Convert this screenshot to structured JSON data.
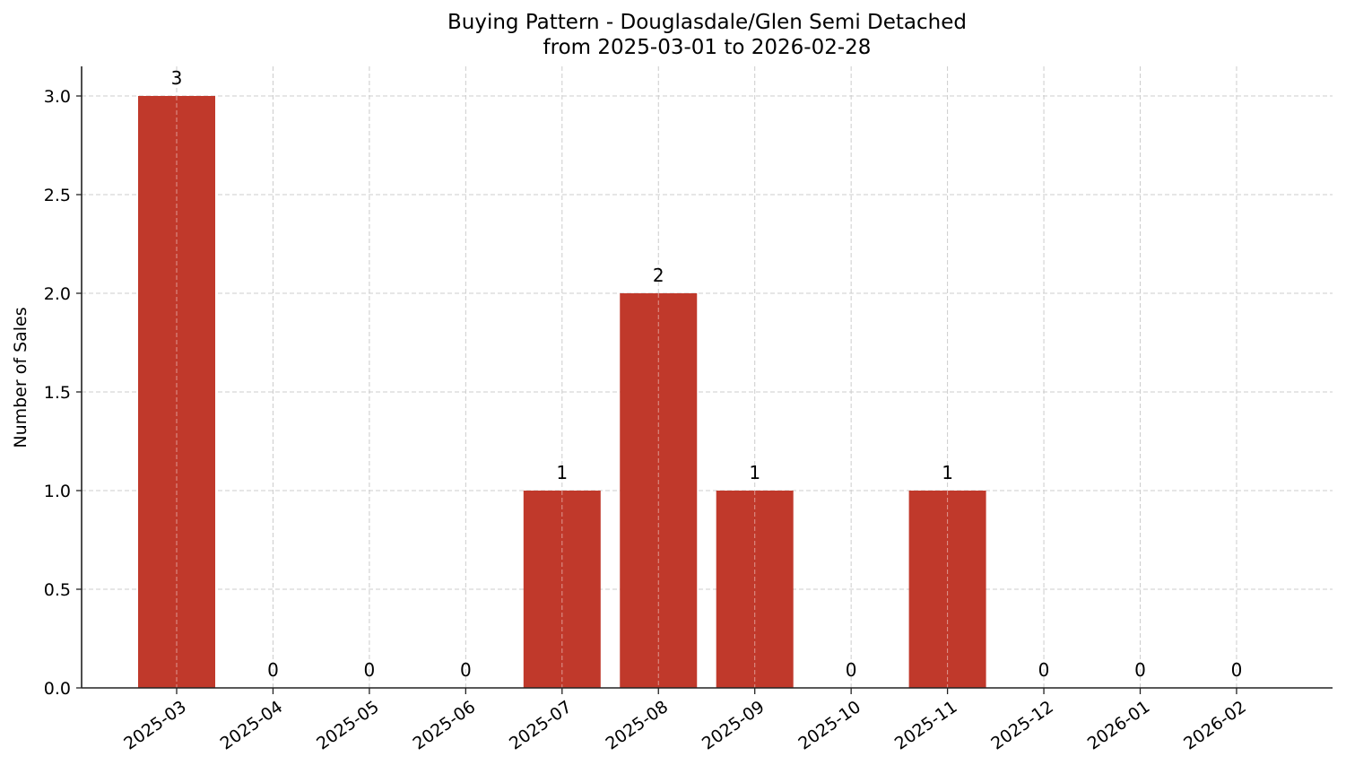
{
  "chart_data": {
    "type": "bar",
    "title": "Buying Pattern - Douglasdale/Glen Semi Detached",
    "subtitle": "from 2025-03-01 to 2026-02-28",
    "xlabel": "",
    "ylabel": "Number of Sales",
    "categories": [
      "2025-03",
      "2025-04",
      "2025-05",
      "2025-06",
      "2025-07",
      "2025-08",
      "2025-09",
      "2025-10",
      "2025-11",
      "2025-12",
      "2026-01",
      "2026-02"
    ],
    "values": [
      3,
      0,
      0,
      0,
      1,
      2,
      1,
      0,
      1,
      0,
      0,
      0
    ],
    "ylim": [
      0,
      3.15
    ],
    "yticks": [
      "0.0",
      "0.5",
      "1.0",
      "1.5",
      "2.0",
      "2.5",
      "3.0"
    ],
    "grid": true,
    "bar_color": "#c0392b",
    "data_labels": true
  }
}
